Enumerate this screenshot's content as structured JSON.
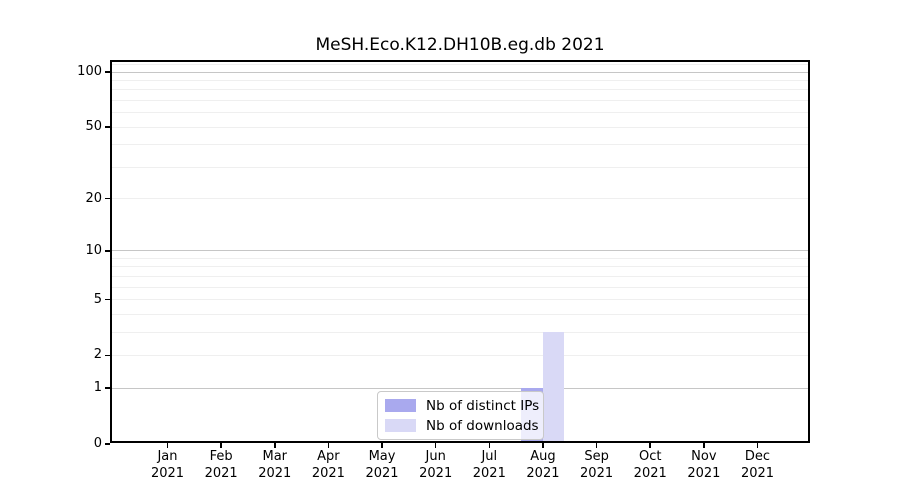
{
  "chart_data": {
    "type": "bar",
    "title": "MeSH.Eco.K12.DH10B.eg.db 2021",
    "categories": [
      "Jan",
      "Feb",
      "Mar",
      "Apr",
      "May",
      "Jun",
      "Jul",
      "Aug",
      "Sep",
      "Oct",
      "Nov",
      "Dec"
    ],
    "x_year": "2021",
    "series": [
      {
        "name": "Nb of distinct IPs",
        "color": "#a9a9ee",
        "values": [
          0,
          0,
          0,
          0,
          0,
          0,
          0,
          1,
          0,
          0,
          0,
          0
        ]
      },
      {
        "name": "Nb of downloads",
        "color": "#d9d9f6",
        "values": [
          0,
          0,
          0,
          0,
          0,
          0,
          0,
          3,
          0,
          0,
          0,
          0
        ]
      }
    ],
    "y_axis": {
      "scale": "log1p",
      "ticks": [
        0,
        1,
        2,
        5,
        10,
        20,
        50,
        100
      ],
      "tick_labels": [
        "0",
        "1",
        "2",
        "5",
        "10",
        "20",
        "50",
        "100"
      ],
      "range_max": 113,
      "major_grid_values": [
        1,
        10,
        100
      ],
      "minor_grid_values": [
        2,
        3,
        4,
        5,
        6,
        7,
        8,
        9,
        20,
        30,
        40,
        50,
        60,
        70,
        80,
        90,
        110
      ]
    },
    "legend": {
      "position": "lower center",
      "entries": [
        "Nb of distinct IPs",
        "Nb of downloads"
      ]
    },
    "colors": {
      "background": "#ffffff",
      "axis": "#000000",
      "text": "#000000",
      "major_grid": "#c6c6c6",
      "minor_grid": "#efefef",
      "legend_border": "#c9c9c9"
    }
  }
}
